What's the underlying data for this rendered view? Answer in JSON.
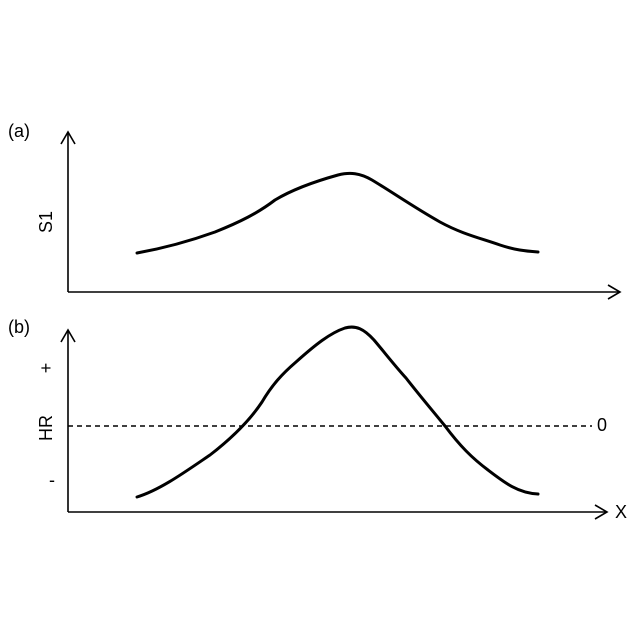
{
  "figure": {
    "panel_a": {
      "label": "(a)",
      "ylabel": "S1"
    },
    "panel_b": {
      "label": "(b)",
      "ylabel": "HR",
      "plus_sign": "+",
      "minus_sign": "-",
      "zero_label": "0",
      "xlabel": "X"
    },
    "colors": {
      "ink": "#000000",
      "background": "#ffffff"
    }
  }
}
